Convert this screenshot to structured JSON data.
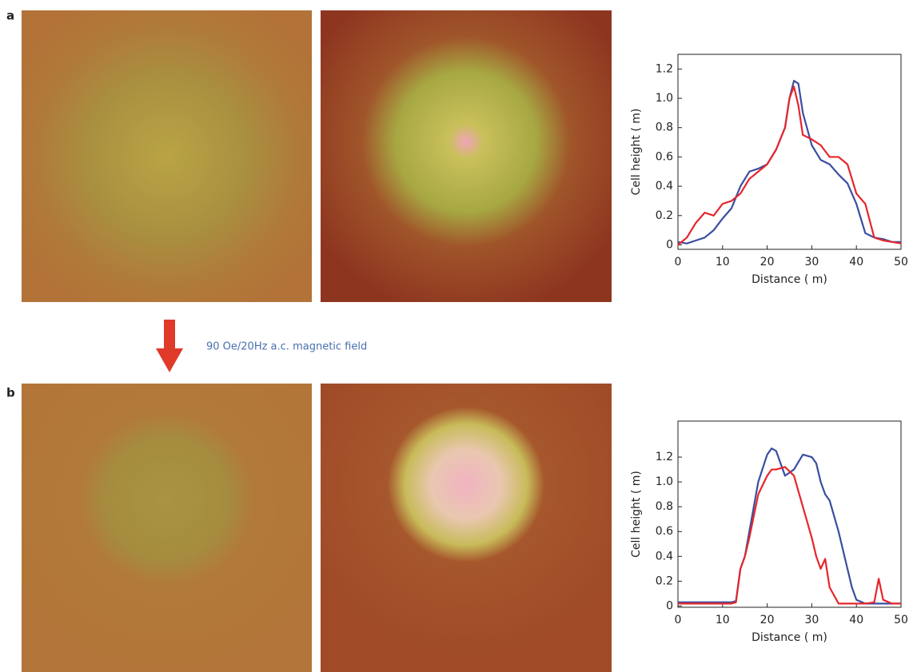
{
  "panel_labels": [
    "a",
    "b"
  ],
  "annotation": "90 Oe/20Hz a.c. magnetic field",
  "chart_data": [
    {
      "type": "line",
      "xlabel": "Distance (   m)",
      "ylabel": "Cell height (   m)",
      "x": [
        0,
        2,
        4,
        6,
        8,
        10,
        12,
        14,
        16,
        18,
        20,
        22,
        24,
        25,
        26,
        27,
        28,
        30,
        32,
        34,
        36,
        38,
        40,
        42,
        44,
        46,
        48,
        50
      ],
      "series": [
        {
          "color": "#3a4ea0",
          "values": [
            0.02,
            0.01,
            0.03,
            0.05,
            0.1,
            0.18,
            0.25,
            0.4,
            0.5,
            0.52,
            0.55,
            0.65,
            0.8,
            1.0,
            1.12,
            1.1,
            0.9,
            0.68,
            0.58,
            0.55,
            0.48,
            0.42,
            0.28,
            0.08,
            0.05,
            0.04,
            0.02,
            0.02
          ]
        },
        {
          "color": "#e6262c",
          "values": [
            0.0,
            0.05,
            0.15,
            0.22,
            0.2,
            0.28,
            0.3,
            0.35,
            0.45,
            0.5,
            0.55,
            0.65,
            0.8,
            1.0,
            1.08,
            0.95,
            0.75,
            0.72,
            0.68,
            0.6,
            0.6,
            0.55,
            0.35,
            0.28,
            0.05,
            0.03,
            0.02,
            0.01
          ]
        }
      ],
      "xlim": [
        0,
        50
      ],
      "xticks": [
        0,
        10,
        20,
        30,
        40,
        50
      ],
      "ylim": [
        -0.03,
        1.3
      ],
      "yticks": [
        0,
        0.2,
        0.4,
        0.6,
        0.8,
        {
          "value": 1,
          "label": "1.0"
        },
        1.2
      ]
    },
    {
      "type": "line",
      "xlabel": "Distance (   m)",
      "ylabel": "Cell height (   m)",
      "x": [
        0,
        4,
        8,
        12,
        13,
        14,
        15,
        16,
        18,
        20,
        21,
        22,
        24,
        26,
        28,
        30,
        31,
        32,
        33,
        34,
        36,
        38,
        39,
        40,
        42,
        44,
        45,
        46,
        48,
        50
      ],
      "series": [
        {
          "color": "#3a4ea0",
          "values": [
            0.03,
            0.03,
            0.03,
            0.03,
            0.04,
            0.3,
            0.4,
            0.6,
            1.0,
            1.22,
            1.27,
            1.25,
            1.05,
            1.1,
            1.22,
            1.2,
            1.15,
            1.0,
            0.9,
            0.85,
            0.6,
            0.3,
            0.15,
            0.05,
            0.02,
            0.02,
            0.02,
            0.02,
            0.02,
            0.02
          ]
        },
        {
          "color": "#e6262c",
          "values": [
            0.02,
            0.02,
            0.02,
            0.02,
            0.03,
            0.3,
            0.4,
            0.55,
            0.9,
            1.05,
            1.1,
            1.1,
            1.12,
            1.05,
            0.8,
            0.55,
            0.4,
            0.3,
            0.38,
            0.15,
            0.02,
            0.02,
            0.02,
            0.02,
            0.02,
            0.03,
            0.22,
            0.05,
            0.02,
            0.02
          ]
        }
      ],
      "xlim": [
        0,
        50
      ],
      "xticks": [
        0,
        10,
        20,
        30,
        40,
        50
      ],
      "ylim": [
        -0.01,
        1.49
      ],
      "yticks": [
        0,
        0.2,
        0.4,
        0.6,
        0.8,
        {
          "value": 1,
          "label": "1.0"
        },
        1.2
      ]
    }
  ]
}
